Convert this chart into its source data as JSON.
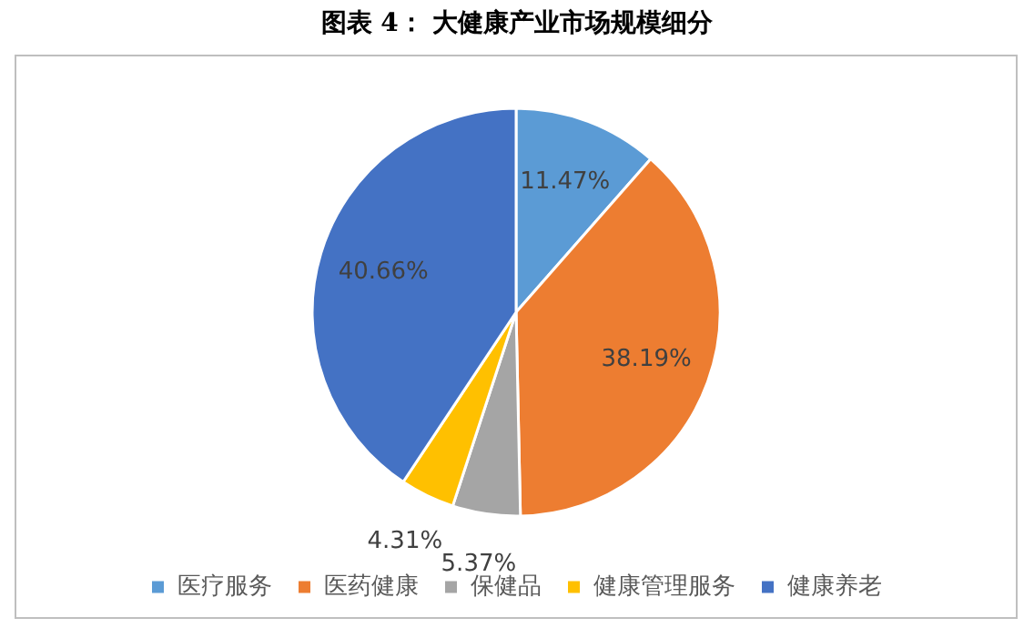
{
  "chart_data": {
    "type": "pie",
    "title": "图表 4：  大健康产业市场规模细分",
    "categories": [
      "医疗服务",
      "医药健康",
      "保健品",
      "健康管理服务",
      "健康养老"
    ],
    "values": [
      11.47,
      38.19,
      5.37,
      4.31,
      40.66
    ],
    "colors": [
      "#5b9bd5",
      "#ed7d31",
      "#a5a5a5",
      "#ffc000",
      "#4472c4"
    ],
    "value_labels": [
      "11.47%",
      "38.19%",
      "5.37%",
      "4.31%",
      "40.66%"
    ],
    "legend": "bottom"
  }
}
